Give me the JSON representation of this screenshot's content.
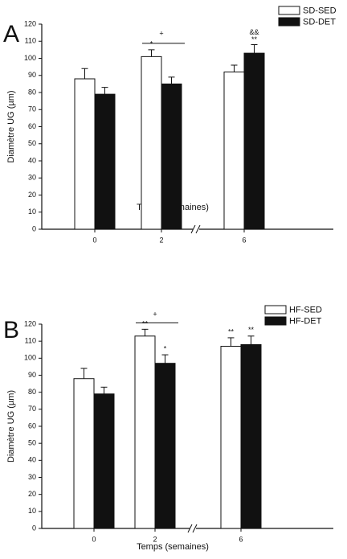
{
  "chart_data": [
    {
      "type": "bar",
      "panel_label": "A",
      "categories": [
        "0",
        "2",
        "6"
      ],
      "series": [
        {
          "name": "SD-SED",
          "color": "#ffffff",
          "values": [
            88,
            101,
            92
          ],
          "errors": [
            6,
            4,
            4
          ]
        },
        {
          "name": "SD-DET",
          "color": "#111111",
          "values": [
            79,
            85,
            103
          ],
          "errors": [
            4,
            4,
            5
          ]
        }
      ],
      "ylim": [
        0,
        120
      ],
      "yticks": [
        0,
        10,
        20,
        30,
        40,
        50,
        60,
        70,
        80,
        90,
        100,
        110,
        120
      ],
      "y_label": "Diamètre UG (µm)",
      "x_label": "Temps (semaines)",
      "annotations": [
        {
          "text": "+"
        },
        {
          "text": "*"
        },
        {
          "text": "**"
        },
        {
          "text": "&&"
        }
      ]
    },
    {
      "type": "bar",
      "panel_label": "B",
      "categories": [
        "0",
        "2",
        "6"
      ],
      "series": [
        {
          "name": "HF-SED",
          "color": "#ffffff",
          "values": [
            88,
            113,
            107
          ],
          "errors": [
            6,
            4,
            5
          ]
        },
        {
          "name": "HF-DET",
          "color": "#111111",
          "values": [
            79,
            97,
            108
          ],
          "errors": [
            4,
            5,
            5
          ]
        }
      ],
      "ylim": [
        0,
        120
      ],
      "yticks": [
        0,
        10,
        20,
        30,
        40,
        50,
        60,
        70,
        80,
        90,
        100,
        110,
        120
      ],
      "y_label": "Diamètre UG (µm)",
      "x_label": "Temps (semaines)",
      "annotations": [
        {
          "text": "+"
        },
        {
          "text": "**"
        },
        {
          "text": "*"
        },
        {
          "text": "**"
        },
        {
          "text": "**"
        }
      ]
    }
  ]
}
